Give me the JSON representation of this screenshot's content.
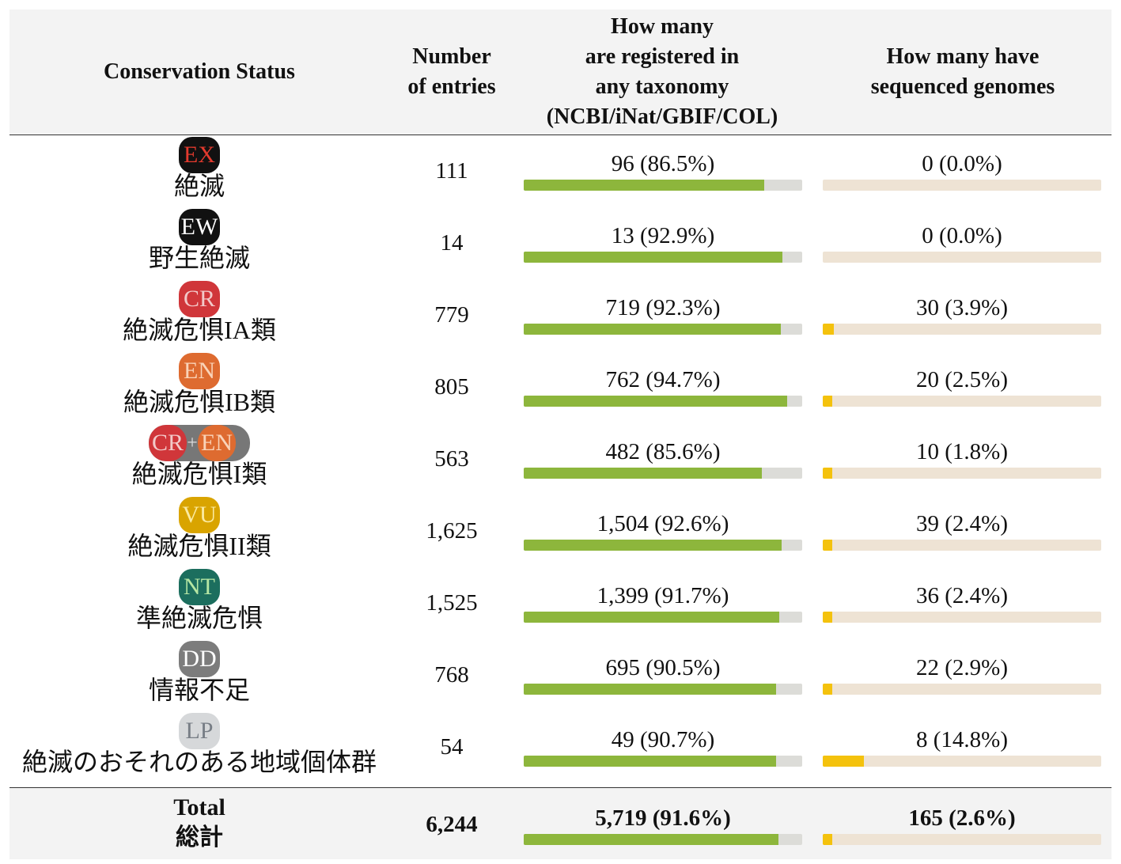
{
  "header": {
    "status": "Conservation Status",
    "entries": "Number\nof entries",
    "taxonomy": "How many\nare registered in\nany taxonomy\n(NCBI/iNat/GBIF/COL)",
    "genomes": "How many have\nsequenced genomes"
  },
  "rows": [
    {
      "badge": "EX",
      "badge_bg": "#111111",
      "badge_fg": "#e33a2e",
      "label": "絶滅",
      "entries": "111",
      "taxonomy": "96 (86.5%)",
      "taxonomy_frac": 0.865,
      "genomes": "0 (0.0%)",
      "genomes_frac": 0.0
    },
    {
      "badge": "EW",
      "badge_bg": "#111111",
      "badge_fg": "#ffffff",
      "label": "野生絶滅",
      "entries": "14",
      "taxonomy": "13 (92.9%)",
      "taxonomy_frac": 0.929,
      "genomes": "0 (0.0%)",
      "genomes_frac": 0.0
    },
    {
      "badge": "CR",
      "badge_bg": "#d0363a",
      "badge_fg": "#f2c9c9",
      "label": "絶滅危惧IA類",
      "entries": "779",
      "taxonomy": "719 (92.3%)",
      "taxonomy_frac": 0.923,
      "genomes": "30 (3.9%)",
      "genomes_frac": 0.039
    },
    {
      "badge": "EN",
      "badge_bg": "#de6b30",
      "badge_fg": "#f9d3b8",
      "label": "絶滅危惧IB類",
      "entries": "805",
      "taxonomy": "762 (94.7%)",
      "taxonomy_frac": 0.947,
      "genomes": "20 (2.5%)",
      "genomes_frac": 0.025
    },
    {
      "badge": "CR",
      "badge2": "EN",
      "plus": "+",
      "badge_bg": "#d0363a",
      "badge_fg": "#f2c9c9",
      "badge2_bg": "#de6b30",
      "badge2_fg": "#f9d3b8",
      "label": "絶滅危惧I類",
      "entries": "563",
      "taxonomy": "482 (85.6%)",
      "taxonomy_frac": 0.856,
      "genomes": "10 (1.8%)",
      "genomes_frac": 0.018
    },
    {
      "badge": "VU",
      "badge_bg": "#d9a400",
      "badge_fg": "#fbeaa0",
      "label": "絶滅危惧II類",
      "entries": "1,625",
      "taxonomy": "1,504 (92.6%)",
      "taxonomy_frac": 0.926,
      "genomes": "39 (2.4%)",
      "genomes_frac": 0.024
    },
    {
      "badge": "NT",
      "badge_bg": "#1c6e5e",
      "badge_fg": "#b5e6a3",
      "label": "準絶滅危惧",
      "entries": "1,525",
      "taxonomy": "1,399 (91.7%)",
      "taxonomy_frac": 0.917,
      "genomes": "36 (2.4%)",
      "genomes_frac": 0.024
    },
    {
      "badge": "DD",
      "badge_bg": "#7c7c7c",
      "badge_fg": "#ffffff",
      "label": "情報不足",
      "entries": "768",
      "taxonomy": "695 (90.5%)",
      "taxonomy_frac": 0.905,
      "genomes": "22 (2.9%)",
      "genomes_frac": 0.029
    },
    {
      "badge": "LP",
      "badge_bg": "#d6d8da",
      "badge_fg": "#777d85",
      "label": "絶滅のおそれのある地域個体群",
      "entries": "54",
      "taxonomy": "49 (90.7%)",
      "taxonomy_frac": 0.907,
      "genomes": "8 (14.8%)",
      "genomes_frac": 0.148
    }
  ],
  "total": {
    "label_en": "Total",
    "label_jp": "総計",
    "entries": "6,244",
    "taxonomy": "5,719 (91.6%)",
    "taxonomy_frac": 0.916,
    "genomes": "165 (2.6%)",
    "genomes_frac": 0.026
  }
}
